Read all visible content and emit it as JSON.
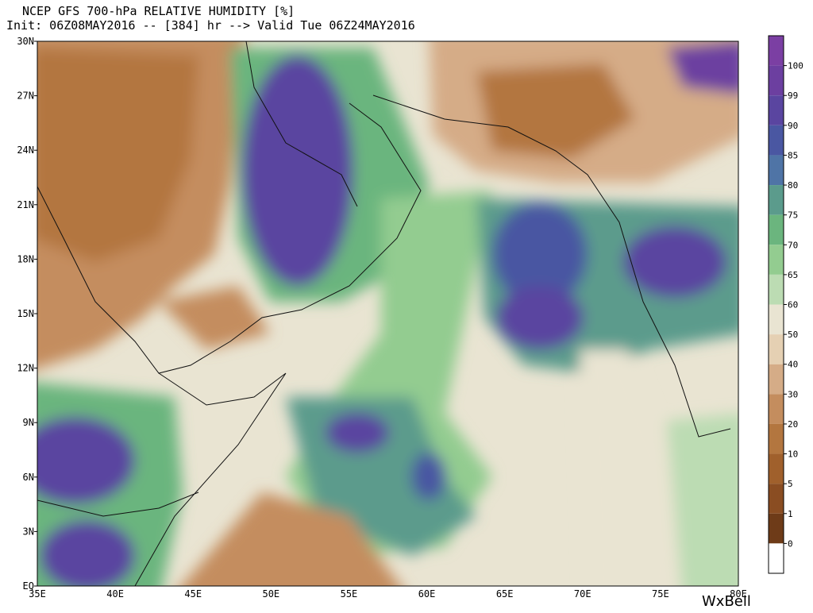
{
  "header": {
    "title": "NCEP GFS 700-hPa RELATIVE HUMIDITY [%]",
    "subtitle": "Init: 06Z08MAY2016 -- [384] hr --> Valid Tue 06Z24MAY2016"
  },
  "map": {
    "lat_labels": [
      "30N",
      "27N",
      "24N",
      "21N",
      "18N",
      "15N",
      "12N",
      "9N",
      "6N",
      "3N",
      "EQ"
    ],
    "lon_labels": [
      "35E",
      "40E",
      "45E",
      "50E",
      "55E",
      "60E",
      "65E",
      "70E",
      "75E",
      "80E"
    ]
  },
  "colorbar": {
    "labels": [
      "100",
      "99",
      "90",
      "85",
      "80",
      "75",
      "70",
      "65",
      "60",
      "50",
      "40",
      "30",
      "20",
      "10",
      "5",
      "1",
      "0"
    ],
    "colors": [
      "#7b3fa3",
      "#6c3fa0",
      "#5a45a0",
      "#4a57a2",
      "#4f74a6",
      "#5b9b8c",
      "#6bb57e",
      "#93cc90",
      "#bcdcb3",
      "#e9e4d2",
      "#e5d0b3",
      "#d5ac87",
      "#c48d5e",
      "#b3763f",
      "#a0602c",
      "#8a4d22",
      "#6e3b18",
      "#ffffff"
    ]
  },
  "watermark": "WxBell"
}
